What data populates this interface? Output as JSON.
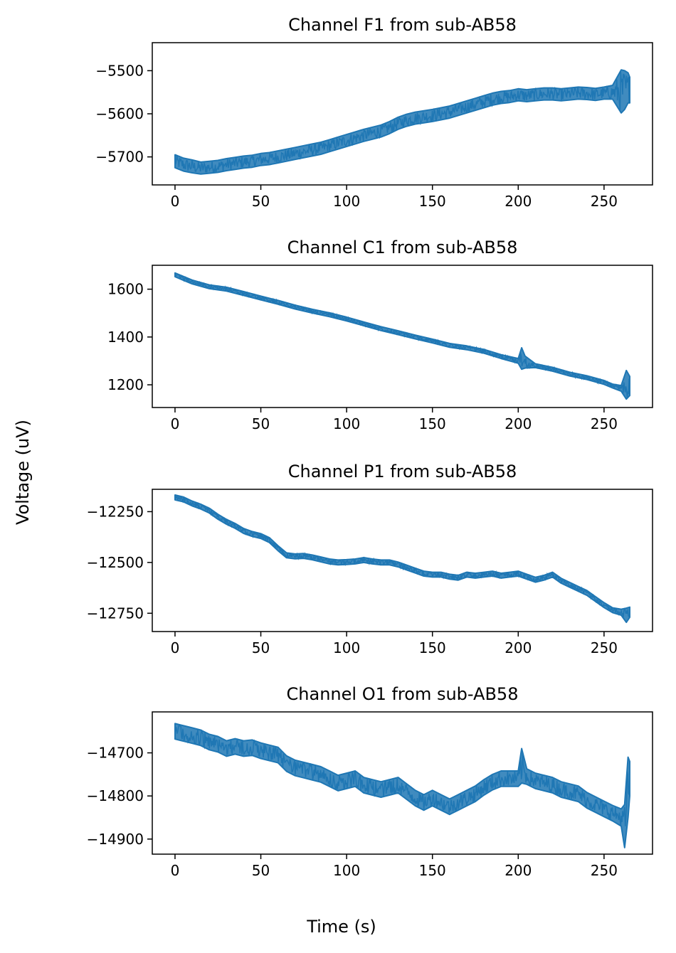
{
  "figure": {
    "ylabel": "Voltage (uV)",
    "xlabel": "Time (s)",
    "line_color": "#1f77b4"
  },
  "chart_data": [
    {
      "type": "line",
      "title": "Channel F1 from sub-AB58",
      "xlim": [
        -13.25,
        278.25
      ],
      "ylim": [
        -5765,
        -5435
      ],
      "xticks": [
        0,
        50,
        100,
        150,
        200,
        250
      ],
      "yticks": [
        -5700,
        -5600,
        -5500
      ],
      "ytick_labels": [
        "−5700",
        "−5600",
        "−5500"
      ],
      "x": [
        0,
        5,
        10,
        15,
        20,
        25,
        30,
        35,
        40,
        45,
        50,
        55,
        60,
        65,
        70,
        75,
        80,
        85,
        90,
        95,
        100,
        105,
        110,
        115,
        120,
        125,
        130,
        135,
        140,
        145,
        150,
        155,
        160,
        165,
        170,
        175,
        180,
        185,
        190,
        195,
        200,
        205,
        210,
        215,
        220,
        225,
        230,
        235,
        240,
        245,
        250,
        255,
        260,
        262,
        264,
        265
      ],
      "y": [
        -5710,
        -5718,
        -5722,
        -5726,
        -5724,
        -5722,
        -5718,
        -5715,
        -5712,
        -5710,
        -5706,
        -5704,
        -5700,
        -5696,
        -5692,
        -5688,
        -5684,
        -5680,
        -5674,
        -5668,
        -5662,
        -5656,
        -5650,
        -5645,
        -5640,
        -5632,
        -5622,
        -5615,
        -5610,
        -5607,
        -5604,
        -5600,
        -5596,
        -5590,
        -5584,
        -5578,
        -5572,
        -5566,
        -5562,
        -5560,
        -5556,
        -5558,
        -5556,
        -5554,
        -5554,
        -5556,
        -5554,
        -5552,
        -5553,
        -5555,
        -5552,
        -5550,
        -5548,
        -5545,
        -5540,
        -5545
      ],
      "band": [
        [
          0,
          15
        ],
        [
          1,
          15
        ],
        [
          2,
          15
        ],
        [
          3,
          14
        ],
        [
          4,
          14
        ],
        [
          5,
          14
        ],
        [
          6,
          14
        ],
        [
          7,
          14
        ],
        [
          8,
          14
        ],
        [
          9,
          14
        ],
        [
          10,
          14
        ],
        [
          11,
          14
        ],
        [
          12,
          14
        ],
        [
          13,
          14
        ],
        [
          14,
          14
        ],
        [
          15,
          14
        ],
        [
          16,
          14
        ],
        [
          17,
          14
        ],
        [
          18,
          14
        ],
        [
          19,
          14
        ],
        [
          20,
          14
        ],
        [
          21,
          14
        ],
        [
          22,
          14
        ],
        [
          23,
          14
        ],
        [
          24,
          14
        ],
        [
          25,
          14
        ],
        [
          26,
          14
        ],
        [
          27,
          14
        ],
        [
          28,
          14
        ],
        [
          29,
          14
        ],
        [
          30,
          14
        ],
        [
          31,
          14
        ],
        [
          32,
          14
        ],
        [
          33,
          14
        ],
        [
          34,
          14
        ],
        [
          35,
          14
        ],
        [
          36,
          14
        ],
        [
          37,
          14
        ],
        [
          38,
          14
        ],
        [
          39,
          14
        ],
        [
          40,
          14
        ],
        [
          41,
          14
        ],
        [
          42,
          14
        ],
        [
          43,
          14
        ],
        [
          44,
          14
        ],
        [
          45,
          14
        ],
        [
          46,
          14
        ],
        [
          47,
          14
        ],
        [
          48,
          14
        ],
        [
          49,
          14
        ],
        [
          50,
          14
        ],
        [
          51,
          16
        ],
        [
          52,
          50
        ],
        [
          53,
          45
        ],
        [
          54,
          35
        ],
        [
          55,
          30
        ]
      ]
    },
    {
      "type": "line",
      "title": "Channel C1 from sub-AB58",
      "xlim": [
        -13.25,
        278.25
      ],
      "ylim": [
        1105,
        1700
      ],
      "xticks": [
        0,
        50,
        100,
        150,
        200,
        250
      ],
      "yticks": [
        1200,
        1400,
        1600
      ],
      "ytick_labels": [
        "1200",
        "1400",
        "1600"
      ],
      "x": [
        0,
        5,
        10,
        20,
        30,
        40,
        50,
        60,
        70,
        80,
        90,
        100,
        110,
        120,
        130,
        140,
        150,
        160,
        170,
        180,
        190,
        200,
        202,
        204,
        210,
        220,
        230,
        240,
        250,
        255,
        260,
        263,
        265
      ],
      "y": [
        1660,
        1645,
        1630,
        1610,
        1600,
        1582,
        1563,
        1545,
        1525,
        1508,
        1493,
        1475,
        1455,
        1435,
        1418,
        1400,
        1383,
        1365,
        1355,
        1340,
        1318,
        1300,
        1310,
        1295,
        1280,
        1265,
        1245,
        1230,
        1210,
        1195,
        1185,
        1200,
        1195
      ],
      "band": [
        [
          0,
          8
        ],
        [
          1,
          8
        ],
        [
          2,
          8
        ],
        [
          3,
          8
        ],
        [
          4,
          8
        ],
        [
          5,
          8
        ],
        [
          6,
          8
        ],
        [
          7,
          8
        ],
        [
          8,
          8
        ],
        [
          9,
          8
        ],
        [
          10,
          8
        ],
        [
          11,
          8
        ],
        [
          12,
          8
        ],
        [
          13,
          8
        ],
        [
          14,
          8
        ],
        [
          15,
          8
        ],
        [
          16,
          8
        ],
        [
          17,
          8
        ],
        [
          18,
          8
        ],
        [
          19,
          8
        ],
        [
          20,
          8
        ],
        [
          21,
          10
        ],
        [
          22,
          45
        ],
        [
          23,
          25
        ],
        [
          24,
          8
        ],
        [
          25,
          8
        ],
        [
          26,
          8
        ],
        [
          27,
          8
        ],
        [
          28,
          8
        ],
        [
          29,
          8
        ],
        [
          30,
          12
        ],
        [
          31,
          60
        ],
        [
          32,
          40
        ]
      ]
    },
    {
      "type": "line",
      "title": "Channel P1 from sub-AB58",
      "xlim": [
        -13.25,
        278.25
      ],
      "ylim": [
        -12840,
        -12140
      ],
      "xticks": [
        0,
        50,
        100,
        150,
        200,
        250
      ],
      "yticks": [
        -12750,
        -12500,
        -12250
      ],
      "ytick_labels": [
        "−12750",
        "−12500",
        "−12250"
      ],
      "x": [
        0,
        5,
        10,
        15,
        20,
        25,
        30,
        35,
        40,
        45,
        50,
        55,
        60,
        65,
        70,
        75,
        80,
        85,
        90,
        95,
        100,
        105,
        110,
        115,
        120,
        125,
        130,
        135,
        140,
        145,
        150,
        155,
        160,
        165,
        170,
        175,
        180,
        185,
        190,
        195,
        200,
        205,
        210,
        215,
        220,
        225,
        230,
        235,
        240,
        245,
        250,
        255,
        260,
        263,
        265
      ],
      "y": [
        -12180,
        -12190,
        -12210,
        -12225,
        -12245,
        -12275,
        -12300,
        -12320,
        -12345,
        -12360,
        -12370,
        -12390,
        -12430,
        -12465,
        -12470,
        -12468,
        -12475,
        -12485,
        -12495,
        -12500,
        -12498,
        -12495,
        -12488,
        -12495,
        -12500,
        -12500,
        -12510,
        -12525,
        -12540,
        -12555,
        -12560,
        -12560,
        -12570,
        -12575,
        -12560,
        -12565,
        -12560,
        -12555,
        -12565,
        -12560,
        -12555,
        -12570,
        -12585,
        -12575,
        -12560,
        -12590,
        -12610,
        -12630,
        -12650,
        -12680,
        -12710,
        -12735,
        -12745,
        -12760,
        -12745
      ],
      "band": [
        [
          0,
          12
        ],
        [
          1,
          12
        ],
        [
          2,
          12
        ],
        [
          3,
          12
        ],
        [
          4,
          12
        ],
        [
          5,
          12
        ],
        [
          6,
          12
        ],
        [
          7,
          12
        ],
        [
          8,
          12
        ],
        [
          9,
          12
        ],
        [
          10,
          12
        ],
        [
          11,
          12
        ],
        [
          12,
          12
        ],
        [
          13,
          12
        ],
        [
          14,
          12
        ],
        [
          15,
          12
        ],
        [
          16,
          12
        ],
        [
          17,
          12
        ],
        [
          18,
          12
        ],
        [
          19,
          12
        ],
        [
          20,
          12
        ],
        [
          21,
          12
        ],
        [
          22,
          12
        ],
        [
          23,
          12
        ],
        [
          24,
          12
        ],
        [
          25,
          12
        ],
        [
          26,
          12
        ],
        [
          27,
          12
        ],
        [
          28,
          12
        ],
        [
          29,
          12
        ],
        [
          30,
          12
        ],
        [
          31,
          12
        ],
        [
          32,
          12
        ],
        [
          33,
          12
        ],
        [
          34,
          12
        ],
        [
          35,
          12
        ],
        [
          36,
          12
        ],
        [
          37,
          12
        ],
        [
          38,
          12
        ],
        [
          39,
          12
        ],
        [
          40,
          12
        ],
        [
          41,
          12
        ],
        [
          42,
          12
        ],
        [
          43,
          12
        ],
        [
          44,
          12
        ],
        [
          45,
          12
        ],
        [
          46,
          12
        ],
        [
          47,
          12
        ],
        [
          48,
          12
        ],
        [
          49,
          12
        ],
        [
          50,
          12
        ],
        [
          51,
          12
        ],
        [
          52,
          15
        ],
        [
          53,
          35
        ],
        [
          54,
          25
        ]
      ]
    },
    {
      "type": "line",
      "title": "Channel O1 from sub-AB58",
      "xlim": [
        -13.25,
        278.25
      ],
      "ylim": [
        -14935,
        -14605
      ],
      "xticks": [
        0,
        50,
        100,
        150,
        200,
        250
      ],
      "yticks": [
        -14900,
        -14800,
        -14700
      ],
      "ytick_labels": [
        "−14900",
        "−14800",
        "−14700"
      ],
      "x": [
        0,
        5,
        10,
        15,
        20,
        25,
        30,
        35,
        40,
        45,
        50,
        55,
        60,
        65,
        70,
        75,
        80,
        85,
        90,
        95,
        100,
        105,
        110,
        115,
        120,
        125,
        130,
        135,
        140,
        145,
        150,
        155,
        160,
        165,
        170,
        175,
        180,
        185,
        190,
        195,
        200,
        202,
        205,
        210,
        215,
        220,
        225,
        230,
        235,
        240,
        245,
        250,
        255,
        260,
        262,
        264,
        265
      ],
      "y": [
        -14650,
        -14655,
        -14660,
        -14665,
        -14675,
        -14680,
        -14690,
        -14685,
        -14690,
        -14688,
        -14695,
        -14700,
        -14705,
        -14725,
        -14735,
        -14740,
        -14745,
        -14750,
        -14760,
        -14770,
        -14765,
        -14760,
        -14775,
        -14780,
        -14785,
        -14780,
        -14775,
        -14790,
        -14805,
        -14815,
        -14805,
        -14815,
        -14825,
        -14815,
        -14805,
        -14795,
        -14780,
        -14768,
        -14760,
        -14760,
        -14760,
        -14730,
        -14755,
        -14765,
        -14770,
        -14775,
        -14785,
        -14790,
        -14795,
        -14810,
        -14820,
        -14830,
        -14840,
        -14850,
        -14870,
        -14780,
        -14760
      ],
      "band": [
        [
          0,
          18
        ],
        [
          1,
          18
        ],
        [
          2,
          18
        ],
        [
          3,
          18
        ],
        [
          4,
          18
        ],
        [
          5,
          18
        ],
        [
          6,
          18
        ],
        [
          7,
          18
        ],
        [
          8,
          18
        ],
        [
          9,
          18
        ],
        [
          10,
          18
        ],
        [
          11,
          18
        ],
        [
          12,
          18
        ],
        [
          13,
          18
        ],
        [
          14,
          18
        ],
        [
          15,
          18
        ],
        [
          16,
          18
        ],
        [
          17,
          18
        ],
        [
          18,
          18
        ],
        [
          19,
          18
        ],
        [
          20,
          18
        ],
        [
          21,
          18
        ],
        [
          22,
          18
        ],
        [
          23,
          18
        ],
        [
          24,
          18
        ],
        [
          25,
          18
        ],
        [
          26,
          18
        ],
        [
          27,
          18
        ],
        [
          28,
          18
        ],
        [
          29,
          18
        ],
        [
          30,
          18
        ],
        [
          31,
          18
        ],
        [
          32,
          18
        ],
        [
          33,
          18
        ],
        [
          34,
          18
        ],
        [
          35,
          18
        ],
        [
          36,
          18
        ],
        [
          37,
          18
        ],
        [
          38,
          18
        ],
        [
          39,
          18
        ],
        [
          40,
          18
        ],
        [
          41,
          40
        ],
        [
          42,
          18
        ],
        [
          43,
          18
        ],
        [
          44,
          18
        ],
        [
          45,
          18
        ],
        [
          46,
          18
        ],
        [
          47,
          18
        ],
        [
          48,
          18
        ],
        [
          49,
          18
        ],
        [
          50,
          18
        ],
        [
          51,
          18
        ],
        [
          52,
          18
        ],
        [
          53,
          20
        ],
        [
          54,
          50
        ],
        [
          55,
          70
        ],
        [
          56,
          40
        ]
      ]
    }
  ]
}
